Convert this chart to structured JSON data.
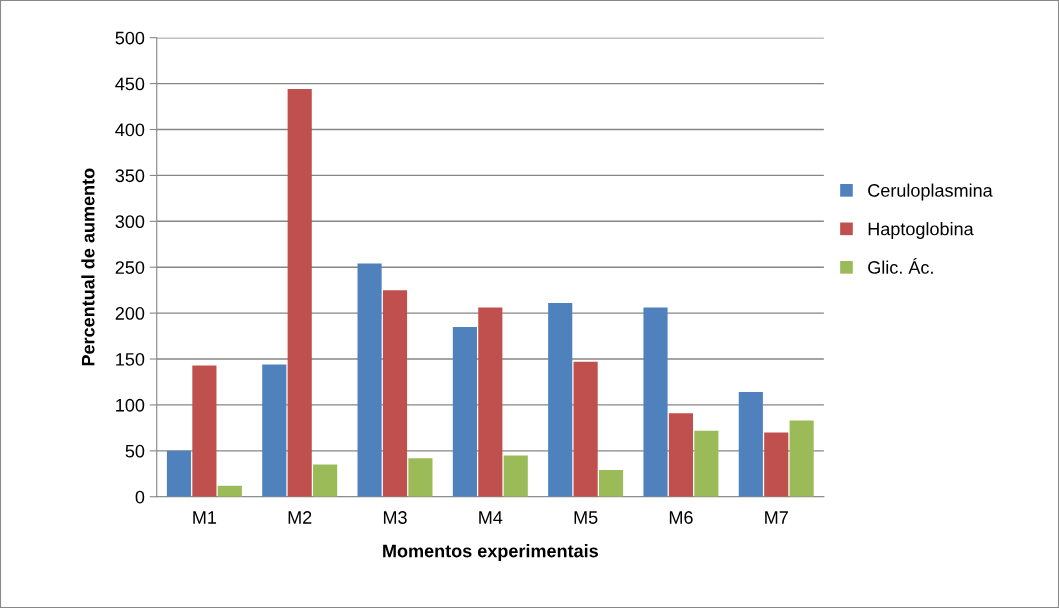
{
  "chart_data": {
    "type": "bar",
    "xlabel": "Momentos experimentais",
    "ylabel": "Percentual de aumento",
    "categories": [
      "M1",
      "M2",
      "M3",
      "M4",
      "M5",
      "M6",
      "M7"
    ],
    "series": [
      {
        "name": "Ceruloplasmina",
        "color": "#4f81bd",
        "values": [
          50,
          144,
          254,
          185,
          211,
          206,
          114
        ]
      },
      {
        "name": "Haptoglobina",
        "color": "#c0504d",
        "values": [
          143,
          444,
          225,
          206,
          147,
          91,
          70
        ]
      },
      {
        "name": "Glic. Ác.",
        "color": "#9bbb59",
        "values": [
          12,
          35,
          42,
          45,
          29,
          72,
          83
        ]
      }
    ],
    "ylim": [
      0,
      500
    ],
    "yticks": [
      0,
      50,
      100,
      150,
      200,
      250,
      300,
      350,
      400,
      450,
      500
    ],
    "grid": "y",
    "legend": "right"
  }
}
